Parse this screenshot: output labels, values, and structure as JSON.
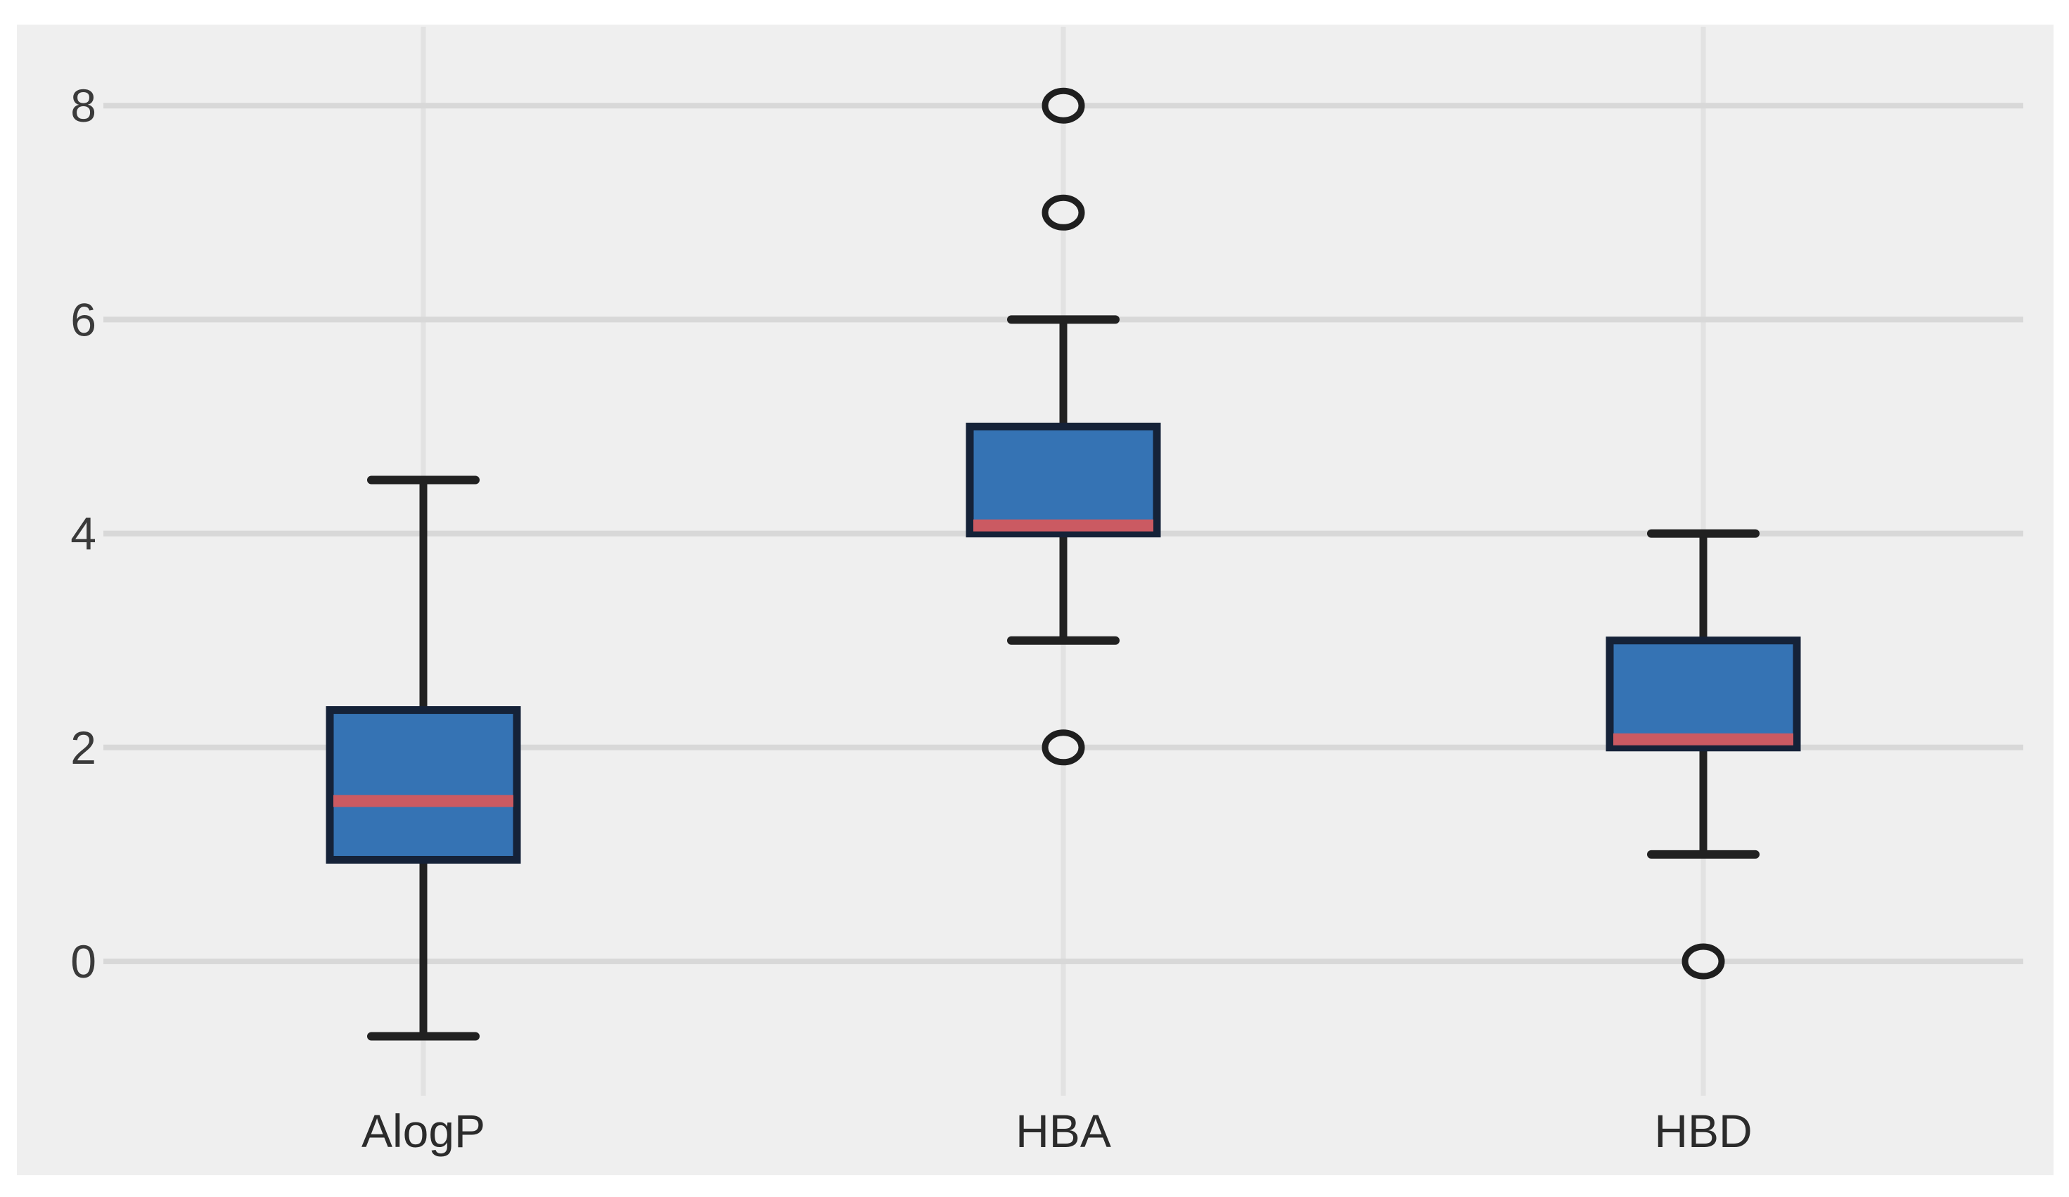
{
  "chart_data": {
    "type": "boxplot",
    "title": "",
    "xlabel": "",
    "ylabel": "",
    "categories": [
      "AlogP",
      "HBA",
      "HBD"
    ],
    "yticks": [
      {
        "label": "8",
        "value": 8
      },
      {
        "label": "6",
        "value": 6
      },
      {
        "label": "4",
        "value": 4
      },
      {
        "label": "2",
        "value": 2
      },
      {
        "label": "0",
        "value": 0
      }
    ],
    "ylim": [
      -1.3,
      8.8
    ],
    "grid": true,
    "legend": false,
    "series": [
      {
        "name": "AlogP",
        "whislo": -0.7,
        "q1": 0.95,
        "median": 1.5,
        "q3": 2.35,
        "whishi": 4.5,
        "outliers": []
      },
      {
        "name": "HBA",
        "whislo": 3,
        "q1": 4,
        "median": 4,
        "q3": 5,
        "whishi": 6,
        "outliers": [
          2,
          7,
          8
        ]
      },
      {
        "name": "HBD",
        "whislo": 1,
        "q1": 2,
        "median": 2,
        "q3": 3,
        "whishi": 4,
        "outliers": [
          0
        ]
      }
    ],
    "colors": {
      "figure_background": "#ffffff",
      "panel_background": "#efefef",
      "gridline": "#d8d8d8",
      "vertical_gridline": "#e2e2e2",
      "box_fill": "#3573b4",
      "box_edge": "#152238",
      "median": "#cb5a62",
      "whisker": "#212121",
      "outlier_edge": "#1f1f1f",
      "tick_text": "#3a3a3a",
      "category_text": "#2b2b2b"
    }
  }
}
